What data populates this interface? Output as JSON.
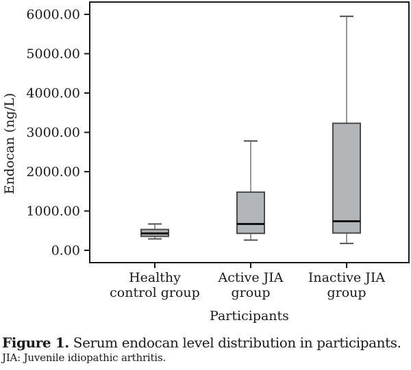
{
  "figure": {
    "caption_label": "Figure 1.",
    "caption_text": "Serum endocan level distribution in participants.",
    "caption_note": "JIA: Juvenile idiopathic arthritis."
  },
  "chart_data": {
    "type": "boxplot",
    "title": "",
    "xlabel": "Participants",
    "ylabel": "Endocan (ng/L)",
    "ylim": [
      0,
      6000
    ],
    "ytick_step": 1000,
    "ytick_labels": [
      "0.00",
      "1000.00",
      "2000.00",
      "3000.00",
      "4000.00",
      "5000.00",
      "6000.00"
    ],
    "grid": false,
    "legend": "none",
    "categories": [
      [
        "Healthy",
        "control group"
      ],
      [
        "Active JIA",
        "group"
      ],
      [
        "Inactive JIA",
        "group"
      ]
    ],
    "series": [
      {
        "name": "Healthy control group",
        "min": 290,
        "q1": 355,
        "median": 430,
        "q3": 530,
        "max": 670
      },
      {
        "name": "Active JIA group",
        "min": 260,
        "q1": 430,
        "median": 670,
        "q3": 1480,
        "max": 2780
      },
      {
        "name": "Inactive JIA group",
        "min": 175,
        "q1": 440,
        "median": 740,
        "q3": 3230,
        "max": 5950
      }
    ],
    "colors": {
      "box_fill": "#b3b6b8",
      "box_border": "#4a4a4a",
      "median": "#111111",
      "whisker": "#5f5f5f",
      "frame": "#1a1a1a",
      "text": "#1a1a1a",
      "background": "#ffffff"
    }
  }
}
